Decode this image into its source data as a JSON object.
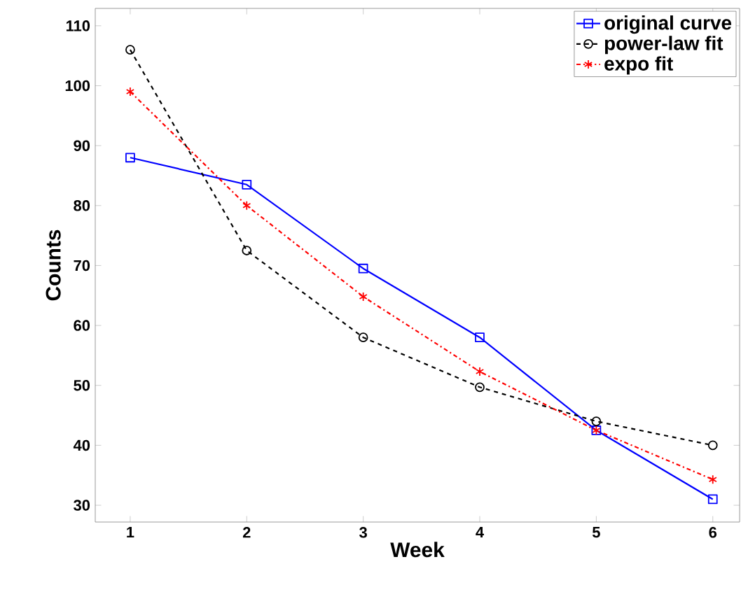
{
  "chart_data": {
    "type": "line",
    "xlabel": "Week",
    "ylabel": "Counts",
    "x": [
      1,
      2,
      3,
      4,
      5,
      6
    ],
    "xlim": [
      0.7,
      6.23
    ],
    "xticks": [
      1,
      2,
      3,
      4,
      5,
      6
    ],
    "ylim": [
      27.2,
      112.9
    ],
    "yticks": [
      30,
      40,
      50,
      60,
      70,
      80,
      90,
      100,
      110
    ],
    "legend": "top right",
    "grid": false,
    "series": [
      {
        "name": "original curve",
        "color": "#0000ff",
        "marker": "square",
        "line_style": "solid",
        "values": [
          88,
          83.5,
          69.5,
          58,
          42.5,
          31
        ]
      },
      {
        "name": "power-law fit",
        "color": "#000000",
        "marker": "circle",
        "line_style": "dashed",
        "values": [
          106,
          72.5,
          58,
          49.7,
          44,
          40
        ]
      },
      {
        "name": "expo fit",
        "color": "#ff0000",
        "marker": "cross",
        "line_style": "dashdot",
        "values": [
          99,
          80,
          64.8,
          52.3,
          42.5,
          34.3
        ]
      }
    ]
  }
}
